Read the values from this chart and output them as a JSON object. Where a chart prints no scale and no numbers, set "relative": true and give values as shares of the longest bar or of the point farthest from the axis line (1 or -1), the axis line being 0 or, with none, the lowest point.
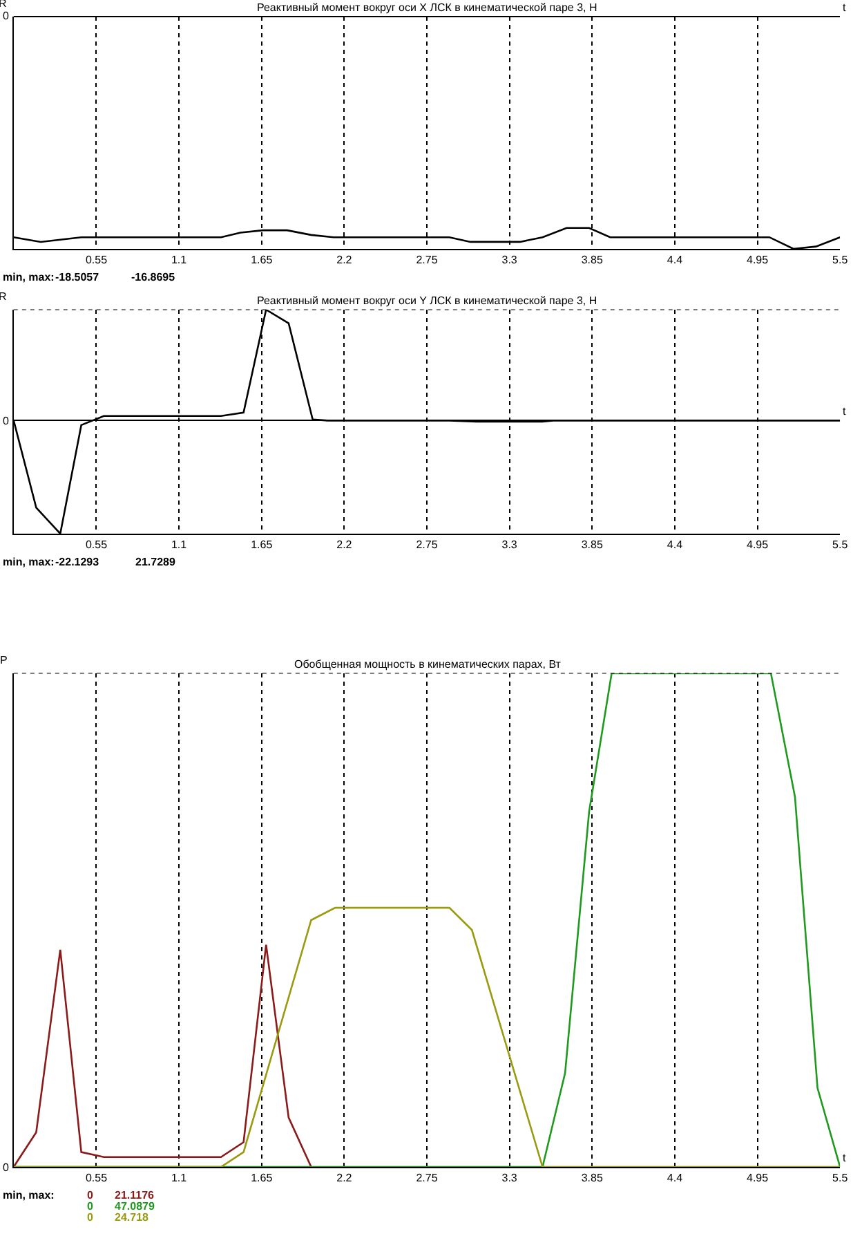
{
  "chart_data": [
    {
      "type": "line",
      "title": "Реактивный момент вокруг оси X ЛСК в кинематической паре 3, Н",
      "xlabel": "t",
      "ylabel": "R",
      "relative": true,
      "grid": "x",
      "xlim": [
        0,
        5.5
      ],
      "xticks": [
        0.55,
        1.1,
        1.65,
        2.2,
        2.75,
        3.3,
        3.85,
        4.4,
        4.95,
        5.5
      ],
      "x": [
        0,
        0.18,
        0.45,
        1.38,
        1.51,
        1.66,
        1.82,
        1.98,
        2.13,
        2.9,
        3.04,
        3.37,
        3.52,
        3.68,
        3.83,
        3.97,
        5.03,
        5.19,
        5.34,
        5.5
      ],
      "series": [
        {
          "color": "#000000",
          "values": [
            -0.95,
            -0.97,
            -0.95,
            -0.95,
            -0.93,
            -0.92,
            -0.92,
            -0.94,
            -0.95,
            -0.95,
            -0.97,
            -0.97,
            -0.95,
            -0.91,
            -0.91,
            -0.95,
            -0.95,
            -1,
            -0.99,
            -0.95
          ]
        }
      ],
      "annotations": [
        "0",
        "min, max:",
        "-18.5057",
        "-16.8695"
      ]
    },
    {
      "type": "line",
      "title": "Реактивный момент вокруг оси Y ЛСК в кинематической паре 3, Н",
      "xlabel": "t",
      "ylabel": "R",
      "relative": true,
      "grid": "x",
      "xlim": [
        0,
        5.5
      ],
      "xticks": [
        0.55,
        1.1,
        1.65,
        2.2,
        2.75,
        3.3,
        3.85,
        4.4,
        4.95,
        5.5
      ],
      "x": [
        0,
        0.15,
        0.31,
        0.45,
        0.6,
        1.38,
        1.53,
        1.68,
        1.83,
        1.99,
        2.09,
        2.9,
        3.08,
        3.52,
        3.59,
        5.5
      ],
      "series": [
        {
          "color": "#000000",
          "values": [
            0,
            -0.77,
            -1,
            -0.04,
            0.04,
            0.04,
            0.07,
            0.98,
            0.86,
            0.01,
            0,
            0,
            -0.01,
            -0.01,
            0,
            0
          ]
        }
      ],
      "annotations": [
        "0",
        "min, max:",
        "-22.1293",
        "21.7289"
      ]
    },
    {
      "type": "line",
      "title": "Обобщенная мощность в кинематических парах, Вт",
      "xlabel": "t",
      "ylabel": "P",
      "relative": true,
      "grid": "x",
      "xlim": [
        0,
        5.5
      ],
      "xticks": [
        0.55,
        1.1,
        1.65,
        2.2,
        2.75,
        3.3,
        3.85,
        4.4,
        4.95,
        5.5
      ],
      "series": [
        {
          "color": "#8b1a1a",
          "x": [
            0,
            0.15,
            0.31,
            0.45,
            0.6,
            1.38,
            1.53,
            1.68,
            1.83,
            1.98
          ],
          "values": [
            0,
            0.07,
            0.44,
            0.03,
            0.02,
            0.02,
            0.05,
            0.45,
            0.1,
            0
          ]
        },
        {
          "color": "#1f9a1f",
          "x": [
            0,
            3.52,
            3.67,
            3.83,
            3.98,
            4.12,
            5.04,
            5.2,
            5.35,
            5.5
          ],
          "values": [
            0,
            0,
            0.19,
            0.72,
            1,
            1,
            1,
            0.75,
            0.16,
            0
          ]
        },
        {
          "color": "#9a9a10",
          "x": [
            0,
            1.38,
            1.53,
            1.98,
            2.14,
            2.9,
            3.05,
            3.52,
            5.5
          ],
          "values": [
            0,
            0,
            0.03,
            0.5,
            0.525,
            0.525,
            0.48,
            0,
            0
          ]
        }
      ],
      "annotations": [
        "0",
        "min, max:",
        "0",
        "21.1176",
        "0",
        "47.0879",
        "0",
        "24.718"
      ]
    }
  ]
}
